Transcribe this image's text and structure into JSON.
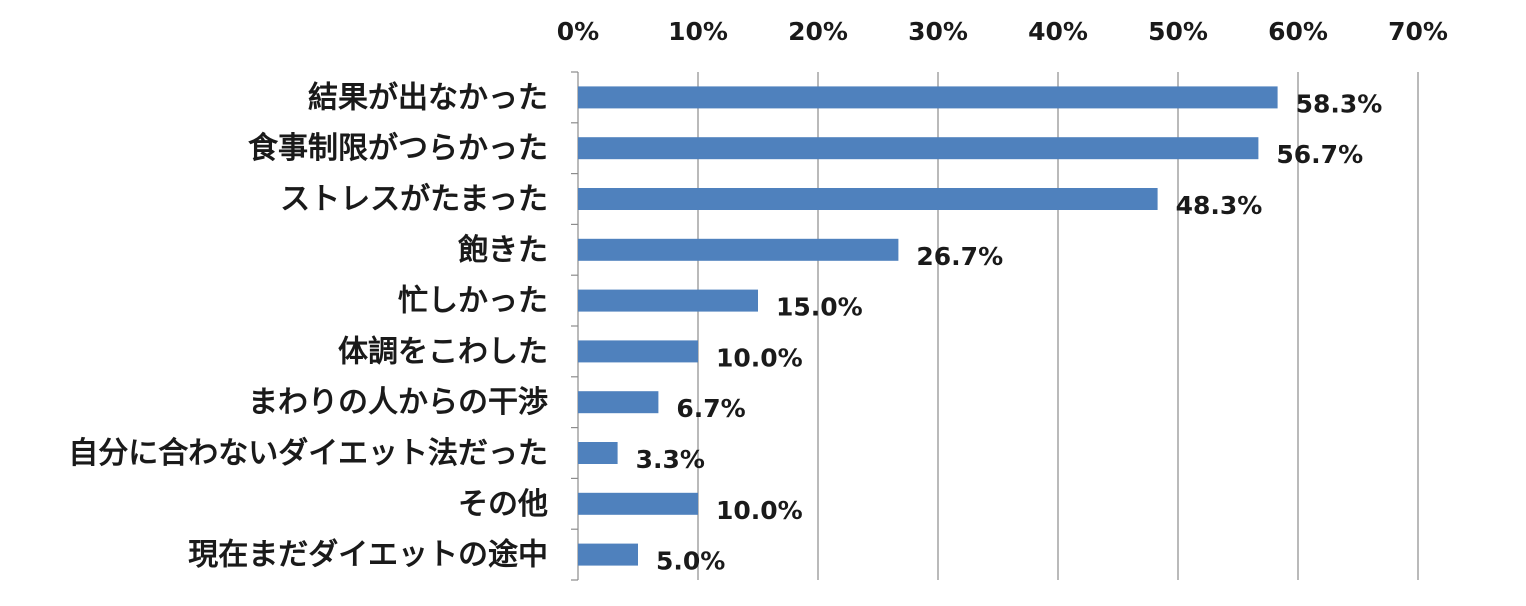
{
  "chart_data": {
    "type": "bar",
    "orientation": "horizontal",
    "categories": [
      "結果が出なかった",
      "食事制限がつらかった",
      "ストレスがたまった",
      "飽きた",
      "忙しかった",
      "体調をこわした",
      "まわりの人からの干渉",
      "自分に合わないダイエット法だった",
      "その他",
      "現在まだダイエットの途中"
    ],
    "values": [
      58.3,
      56.7,
      48.3,
      26.7,
      15.0,
      10.0,
      6.7,
      3.3,
      10.0,
      5.0
    ],
    "data_labels": [
      "58.3%",
      "56.7%",
      "48.3%",
      "26.7%",
      "15.0%",
      "10.0%",
      "6.7%",
      "3.3%",
      "10.0%",
      "5.0%"
    ],
    "xlim": [
      0,
      70
    ],
    "x_ticks": [
      0,
      10,
      20,
      30,
      40,
      50,
      60,
      70
    ],
    "x_tick_labels": [
      "0%",
      "10%",
      "20%",
      "30%",
      "40%",
      "50%",
      "60%",
      "70%"
    ],
    "x_axis_position": "top",
    "grid": true,
    "legend": "none",
    "title": "",
    "xlabel": "",
    "ylabel": "",
    "colors": {
      "bar": "#4F81BD",
      "grid": "#8c8c8c",
      "axis": "#8c8c8c",
      "text": "#1a1a1a"
    }
  }
}
